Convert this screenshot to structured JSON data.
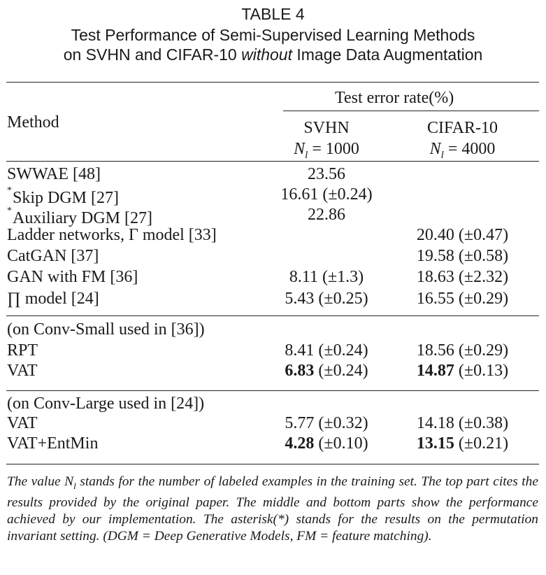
{
  "caption": {
    "label": "TABLE 4",
    "line2": "Test Performance of Semi-Supervised Learning Methods",
    "line3_pre": "on SVHN and CIFAR-10 ",
    "line3_em": "without",
    "line3_post": " Image Data Augmentation"
  },
  "header": {
    "method": "Method",
    "group": "Test error rate(%)",
    "col1": "SVHN",
    "col1_sub": "= 1000",
    "col2": "CIFAR-10",
    "col2_sub": "= 4000",
    "n_symbol": "N",
    "n_sub": "l"
  },
  "top_rows": [
    {
      "method": "SWWAE [48]",
      "svhn": "23.56",
      "cifar": ""
    },
    {
      "asterisk": "*",
      "method": "Skip DGM [27]",
      "svhn": "16.61 (±0.24)",
      "cifar": ""
    },
    {
      "asterisk": "*",
      "method": "Auxiliary DGM [27]",
      "svhn": "22.86",
      "cifar": ""
    },
    {
      "method": "Ladder networks, Γ model [33]",
      "svhn": "",
      "cifar": "20.40 (±0.47)"
    },
    {
      "method": "CatGAN [37]",
      "svhn": "",
      "cifar": "19.58 (±0.58)"
    },
    {
      "method": "GAN with FM [36]",
      "svhn": "8.11 (±1.3)",
      "cifar": "18.63 (±2.32)"
    },
    {
      "method": "∏ model [24]",
      "svhn": "5.43 (±0.25)",
      "cifar": "16.55 (±0.29)"
    }
  ],
  "middle": {
    "title": "(on Conv-Small used in [36])",
    "rows": [
      {
        "method": "RPT",
        "svhn_b": "",
        "svhn": "8.41 (±0.24)",
        "cifar_b": "",
        "cifar": "18.56 (±0.29)"
      },
      {
        "method": "VAT",
        "svhn_b": "6.83",
        "svhn": " (±0.24)",
        "cifar_b": "14.87",
        "cifar": " (±0.13)"
      }
    ]
  },
  "bottom": {
    "title": "(on Conv-Large used in [24])",
    "rows": [
      {
        "method": "VAT",
        "svhn_b": "",
        "svhn": "5.77 (±0.32)",
        "cifar_b": "",
        "cifar": "14.18 (±0.38)"
      },
      {
        "method": "VAT+EntMin",
        "svhn_b": "4.28",
        "svhn": " (±0.10)",
        "cifar_b": "13.15",
        "cifar": " (±0.21)"
      }
    ]
  },
  "note": {
    "pre": "The value ",
    "sym": "N",
    "sub": "l",
    "post": " stands for the number of labeled examples in the training set. The top part cites the results provided by the original paper. The middle and bottom parts show the performance achieved by our implementation. The asterisk(*) stands for the results on the permutation invariant setting. (DGM = Deep Generative Models, FM = feature matching)."
  }
}
